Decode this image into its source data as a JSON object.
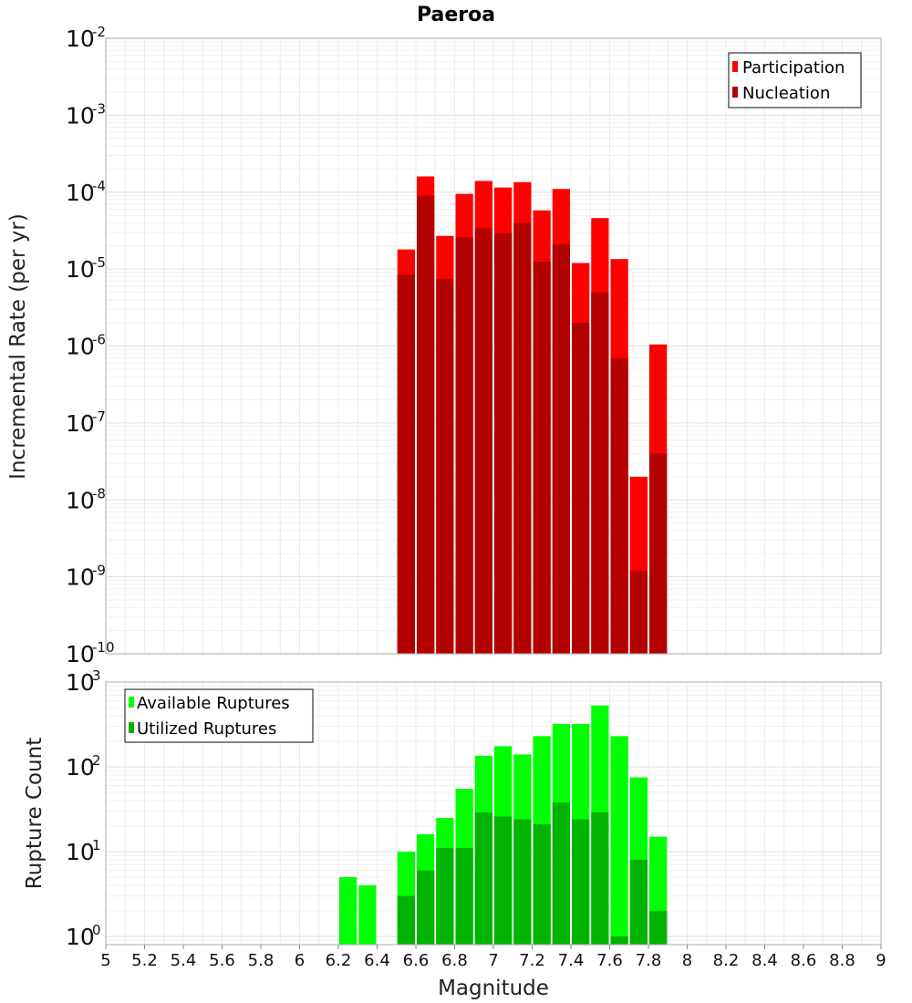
{
  "chart_data": [
    {
      "type": "bar",
      "title": "Paeroa",
      "xlabel": "Magnitude",
      "ylabel": "Incremental Rate (per yr)",
      "yscale": "log",
      "xlim": [
        5,
        9
      ],
      "ylim": [
        1e-10,
        0.01
      ],
      "grid": true,
      "legend_position": "top-right",
      "bar_width": 0.1,
      "x": [
        6.55,
        6.65,
        6.75,
        6.85,
        6.95,
        7.05,
        7.15,
        7.25,
        7.35,
        7.45,
        7.55,
        7.65,
        7.75,
        7.85
      ],
      "series": [
        {
          "name": "Participation",
          "color": "#ff0000",
          "values": [
            1.8e-05,
            0.00016,
            2.7e-05,
            9.5e-05,
            0.00014,
            0.000115,
            0.000135,
            5.8e-05,
            0.00011,
            1.2e-05,
            4.6e-05,
            1.35e-05,
            2e-08,
            1.05e-06
          ]
        },
        {
          "name": "Nucleation",
          "color": "#b30000",
          "values": [
            8.5e-06,
            9e-05,
            7.5e-06,
            2.6e-05,
            3.4e-05,
            2.9e-05,
            4e-05,
            1.25e-05,
            2.1e-05,
            2e-06,
            5e-06,
            7e-07,
            1.2e-09,
            4e-08
          ]
        }
      ]
    },
    {
      "type": "bar",
      "xlabel": "Magnitude",
      "ylabel": "Rupture Count",
      "yscale": "log",
      "xlim": [
        5,
        9
      ],
      "ylim": [
        0.8,
        1000
      ],
      "grid": true,
      "legend_position": "top-left",
      "bar_width": 0.1,
      "x": [
        6.25,
        6.35,
        6.55,
        6.65,
        6.75,
        6.85,
        6.95,
        7.05,
        7.15,
        7.25,
        7.35,
        7.45,
        7.55,
        7.65,
        7.75,
        7.85
      ],
      "series": [
        {
          "name": "Available Ruptures",
          "color": "#00ff00",
          "values": [
            5,
            4,
            10,
            16,
            25,
            55,
            135,
            175,
            140,
            230,
            320,
            320,
            530,
            230,
            75,
            15
          ]
        },
        {
          "name": "Utilized Ruptures",
          "color": "#00b300",
          "values": [
            0,
            0,
            3,
            6,
            11,
            11,
            29,
            26,
            24,
            21,
            38,
            24,
            29,
            1,
            8,
            2
          ]
        }
      ]
    }
  ],
  "x_ticks": [
    "5",
    "5.2",
    "5.4",
    "5.6",
    "5.8",
    "6",
    "6.2",
    "6.4",
    "6.6",
    "6.8",
    "7",
    "7.2",
    "7.4",
    "7.6",
    "7.8",
    "8",
    "8.2",
    "8.4",
    "8.6",
    "8.8",
    "9"
  ],
  "top_y_ticks": [
    {
      "base": "10",
      "exp": "-2"
    },
    {
      "base": "10",
      "exp": "-3"
    },
    {
      "base": "10",
      "exp": "-4"
    },
    {
      "base": "10",
      "exp": "-5"
    },
    {
      "base": "10",
      "exp": "-6"
    },
    {
      "base": "10",
      "exp": "-7"
    },
    {
      "base": "10",
      "exp": "-8"
    },
    {
      "base": "10",
      "exp": "-9"
    },
    {
      "base": "10",
      "exp": "-10"
    }
  ],
  "bottom_y_ticks": [
    {
      "base": "10",
      "exp": "3"
    },
    {
      "base": "10",
      "exp": "2"
    },
    {
      "base": "10",
      "exp": "1"
    },
    {
      "base": "10",
      "exp": "0"
    }
  ]
}
